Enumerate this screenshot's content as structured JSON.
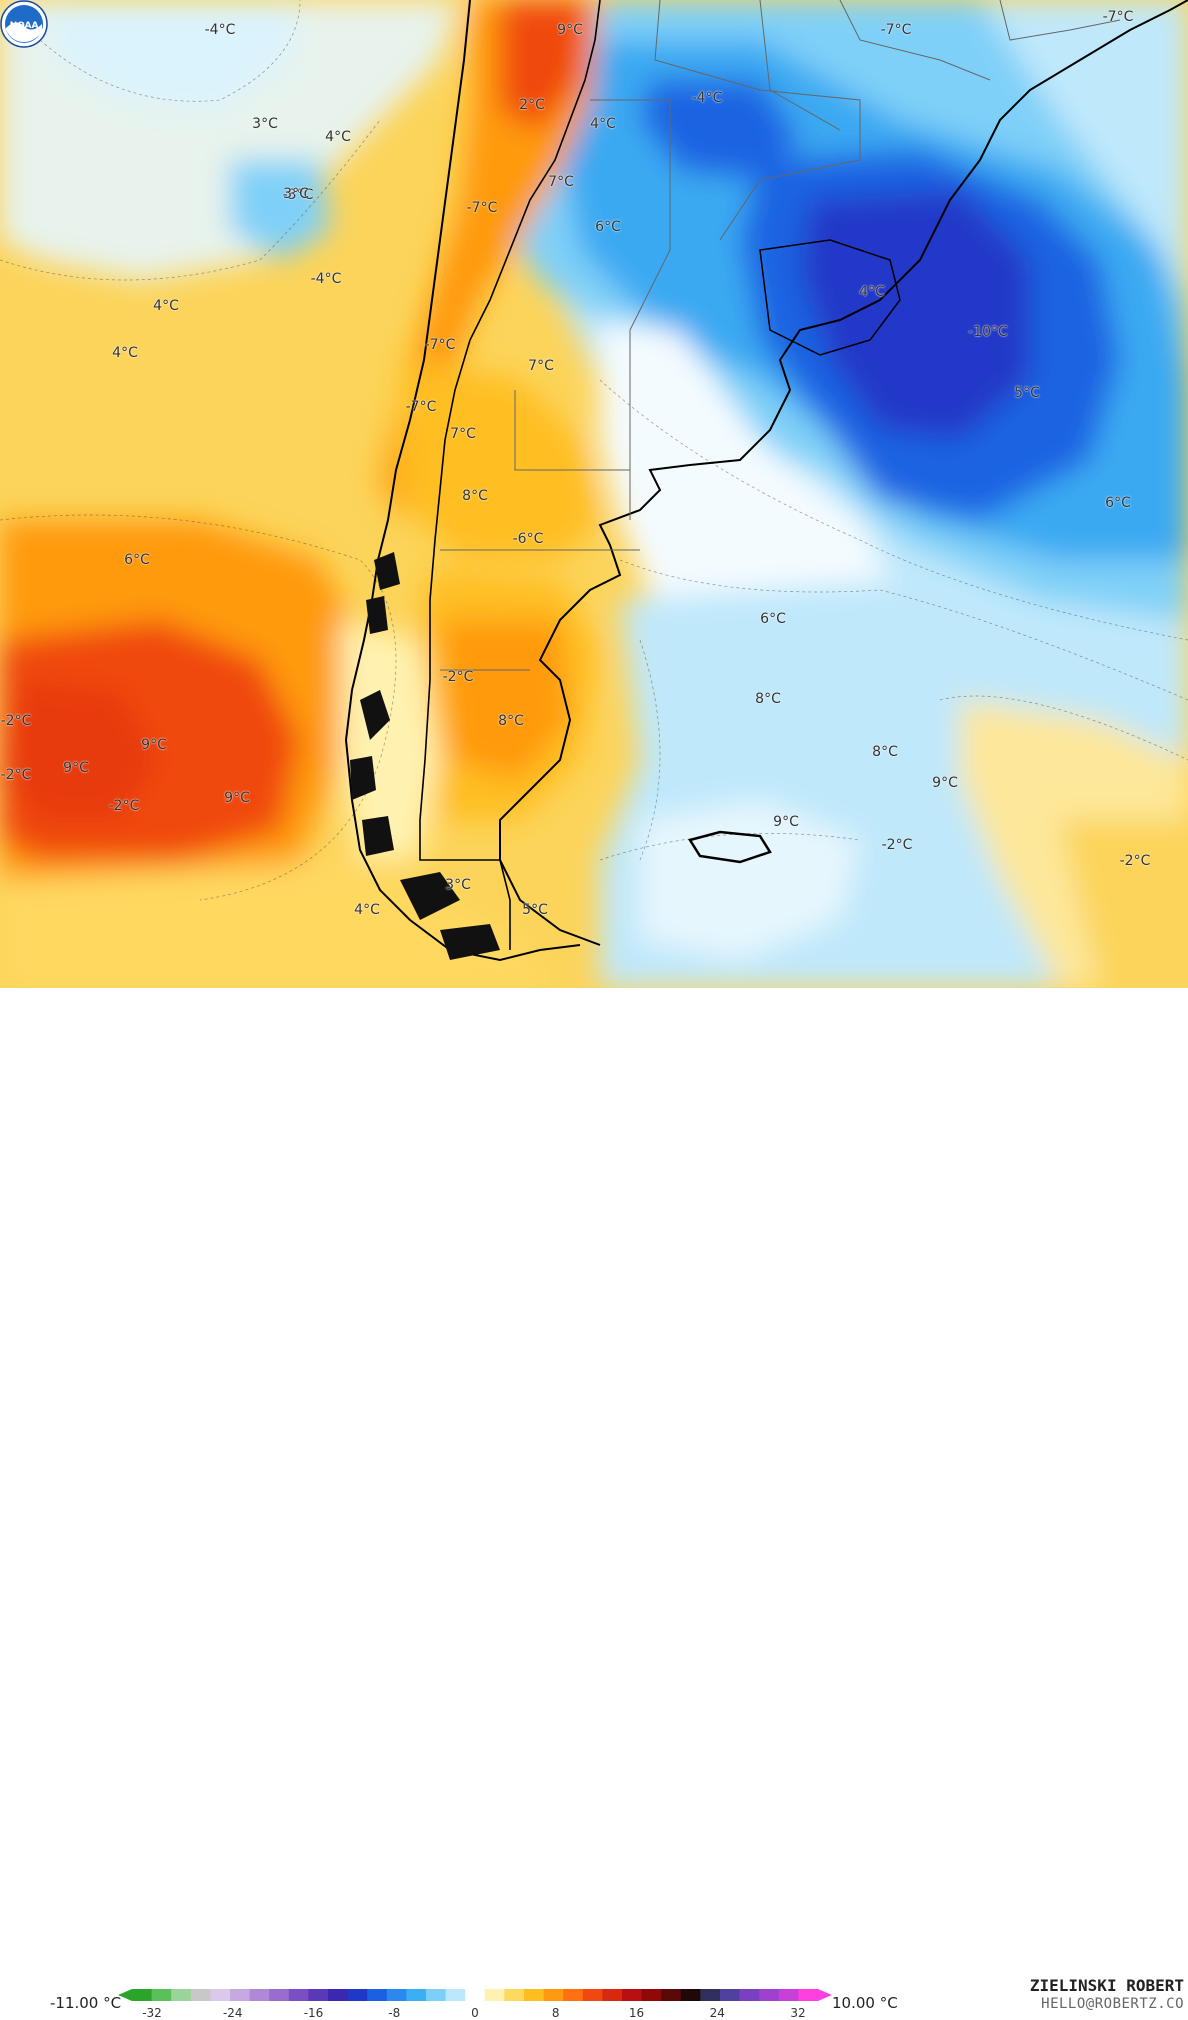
{
  "map": {
    "labels": [
      {
        "text": "-4°C",
        "tone": "cold"
      },
      {
        "text": "9°C",
        "tone": "warm"
      },
      {
        "text": "-7°C",
        "tone": "cold"
      },
      {
        "text": "-4°C",
        "tone": "cold"
      },
      {
        "text": "-7°C",
        "tone": "cold"
      },
      {
        "text": "2°C",
        "tone": "warm"
      },
      {
        "text": "4°C",
        "tone": "warm"
      },
      {
        "text": "3°C",
        "tone": "warm"
      },
      {
        "text": "4°C",
        "tone": "warm"
      },
      {
        "text": "-3°C",
        "tone": "cold"
      },
      {
        "text": "7°C",
        "tone": "warm"
      },
      {
        "text": "-7°C",
        "tone": "cold"
      },
      {
        "text": "6°C",
        "tone": "warm"
      },
      {
        "text": "-4°C",
        "tone": "cold"
      },
      {
        "text": "4°C",
        "tone": "warm"
      },
      {
        "text": "4°C",
        "tone": "warm"
      },
      {
        "text": "4°C",
        "tone": "warm"
      },
      {
        "text": "-10°C",
        "tone": "cold"
      },
      {
        "text": "-7°C",
        "tone": "cold"
      },
      {
        "text": "7°C",
        "tone": "warm"
      },
      {
        "text": "5°C",
        "tone": "warm"
      },
      {
        "text": "-7°C",
        "tone": "cold"
      },
      {
        "text": "7°C",
        "tone": "warm"
      },
      {
        "text": "8°C",
        "tone": "warm"
      },
      {
        "text": "6°C",
        "tone": "warm"
      },
      {
        "text": "-6°C",
        "tone": "cold"
      },
      {
        "text": "6°C",
        "tone": "warm"
      },
      {
        "text": "6°C",
        "tone": "warm"
      },
      {
        "text": "-2°C",
        "tone": "cold"
      },
      {
        "text": "8°C",
        "tone": "warm"
      },
      {
        "text": "-2°C",
        "tone": "cold"
      },
      {
        "text": "9°C",
        "tone": "warm"
      },
      {
        "text": "8°C",
        "tone": "warm"
      },
      {
        "text": "8°C",
        "tone": "warm"
      },
      {
        "text": "-2°C",
        "tone": "cold"
      },
      {
        "text": "9°C",
        "tone": "warm"
      },
      {
        "text": "9°C",
        "tone": "warm"
      },
      {
        "text": "-2°C",
        "tone": "cold"
      },
      {
        "text": "9°C",
        "tone": "warm"
      },
      {
        "text": "9°C",
        "tone": "warm"
      },
      {
        "text": "-2°C",
        "tone": "cold"
      },
      {
        "text": "-2°C",
        "tone": "cold"
      },
      {
        "text": "3°C",
        "tone": "warm"
      },
      {
        "text": "4°C",
        "tone": "warm"
      },
      {
        "text": "5°C",
        "tone": "warm"
      },
      {
        "text": "3°C",
        "tone": "warm"
      }
    ]
  },
  "legend": {
    "min_label": "-11.00 °C",
    "max_label": "10.00 °C",
    "ticks": [
      "-32",
      "-24",
      "-16",
      "-8",
      "0",
      "8",
      "16",
      "24",
      "32"
    ],
    "colors": [
      "#2aa52a",
      "#5ac05a",
      "#9ad49a",
      "#c8c8c8",
      "#dcc8e8",
      "#c8a8e0",
      "#b088d8",
      "#9a6cd0",
      "#7a4ec4",
      "#5a38b8",
      "#3a28b0",
      "#2038c8",
      "#1a60e0",
      "#2a88ee",
      "#3ab0f4",
      "#7cd0f8",
      "#bce8fb",
      "#ffffff",
      "#fff2b0",
      "#ffd860",
      "#ffbe20",
      "#ff9a10",
      "#ff7010",
      "#f04810",
      "#d82810",
      "#b81010",
      "#900808",
      "#5a0808",
      "#200808",
      "#303060",
      "#5040a0",
      "#7a40c0",
      "#a040d0",
      "#c840d8",
      "#ff40e0"
    ]
  },
  "credit": {
    "name": "ZIELINSKI ROBERT",
    "email": "HELLO@ROBERTZ.CO"
  },
  "logo": {
    "text": "NOAA"
  }
}
